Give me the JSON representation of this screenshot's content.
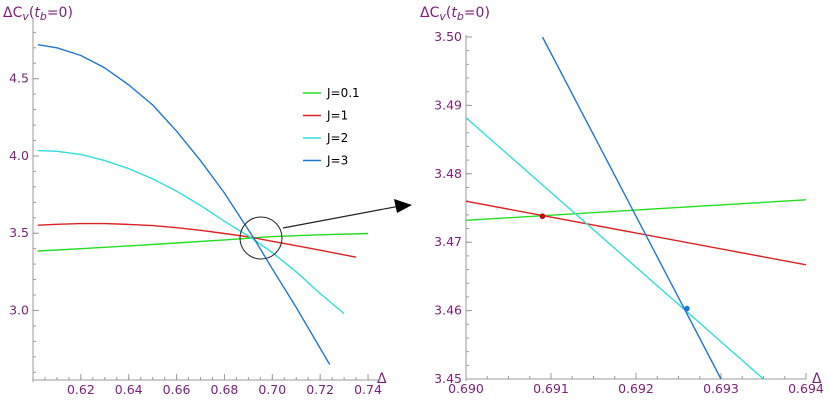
{
  "chart_data": [
    {
      "type": "line",
      "title": "",
      "ylabel": "ΔC_v(t_b=0)",
      "xlabel": "Δ",
      "xlim": [
        0.6,
        0.745
      ],
      "ylim": [
        2.55,
        4.88
      ],
      "x_ticks": [
        "0.62",
        "0.64",
        "0.66",
        "0.68",
        "0.70",
        "0.72",
        "0.74"
      ],
      "x_tick_values": [
        0.62,
        0.64,
        0.66,
        0.68,
        0.7,
        0.72,
        0.74
      ],
      "y_ticks": [
        "3.0",
        "3.5",
        "4.0",
        "4.5"
      ],
      "y_tick_values": [
        3.0,
        3.5,
        4.0,
        4.5
      ],
      "legend_position": "top-right",
      "series": [
        {
          "name": "J=0.1",
          "color": "#22dd22",
          "x": [
            0.602,
            0.62,
            0.64,
            0.66,
            0.68,
            0.692,
            0.7,
            0.72,
            0.74
          ],
          "y": [
            3.385,
            3.4,
            3.418,
            3.437,
            3.457,
            3.47,
            3.478,
            3.49,
            3.498
          ]
        },
        {
          "name": "J=1",
          "color": "#dd2222",
          "x": [
            0.602,
            0.61,
            0.62,
            0.63,
            0.64,
            0.65,
            0.66,
            0.67,
            0.68,
            0.691,
            0.7,
            0.71,
            0.72,
            0.735
          ],
          "y": [
            3.552,
            3.558,
            3.562,
            3.562,
            3.557,
            3.549,
            3.536,
            3.519,
            3.498,
            3.474,
            3.448,
            3.419,
            3.39,
            3.345
          ]
        },
        {
          "name": "J=2",
          "color": "#33dddd",
          "x": [
            0.602,
            0.61,
            0.62,
            0.63,
            0.64,
            0.65,
            0.66,
            0.67,
            0.68,
            0.691,
            0.7,
            0.71,
            0.72,
            0.73
          ],
          "y": [
            4.035,
            4.03,
            4.01,
            3.97,
            3.918,
            3.852,
            3.772,
            3.68,
            3.578,
            3.472,
            3.375,
            3.25,
            3.11,
            2.98
          ]
        },
        {
          "name": "J=3",
          "color": "#1f77d4",
          "x": [
            0.602,
            0.61,
            0.62,
            0.63,
            0.64,
            0.65,
            0.66,
            0.67,
            0.68,
            0.6926,
            0.7,
            0.71,
            0.724
          ],
          "y": [
            4.72,
            4.7,
            4.65,
            4.57,
            4.46,
            4.33,
            4.16,
            3.97,
            3.76,
            3.46,
            3.27,
            3.02,
            2.65
          ]
        }
      ],
      "annotation": "circle magnifying crossing region near Δ≈0.692, arrow to right panel"
    },
    {
      "type": "line",
      "title": "",
      "ylabel": "ΔC_v(t_b=0)",
      "xlabel": "Δ",
      "xlim": [
        0.69,
        0.694
      ],
      "ylim": [
        3.45,
        3.5
      ],
      "x_ticks": [
        "0.690",
        "0.691",
        "0.692",
        "0.693",
        "0.694"
      ],
      "x_tick_values": [
        0.69,
        0.691,
        0.692,
        0.693,
        0.694
      ],
      "y_ticks": [
        "3.45",
        "3.46",
        "3.47",
        "3.48",
        "3.49",
        "3.50"
      ],
      "y_tick_values": [
        3.45,
        3.46,
        3.47,
        3.48,
        3.49,
        3.5
      ],
      "series": [
        {
          "name": "J=0.1",
          "color": "#22dd22",
          "x": [
            0.69,
            0.694
          ],
          "y": [
            3.4732,
            3.4762
          ]
        },
        {
          "name": "J=1",
          "color": "#dd2222",
          "x": [
            0.69,
            0.694
          ],
          "y": [
            3.476,
            3.4667
          ]
        },
        {
          "name": "J=2",
          "color": "#33dddd",
          "x": [
            0.69,
            0.6935
          ],
          "y": [
            3.4882,
            3.45
          ]
        },
        {
          "name": "J=3",
          "color": "#1f77d4",
          "x": [
            0.6909,
            0.693
          ],
          "y": [
            3.5,
            3.45
          ]
        }
      ],
      "points": [
        {
          "x": 0.6909,
          "y": 3.4738,
          "color": "#cc0000"
        },
        {
          "x": 0.6926,
          "y": 3.4603,
          "color": "#1f77d4"
        }
      ]
    }
  ]
}
